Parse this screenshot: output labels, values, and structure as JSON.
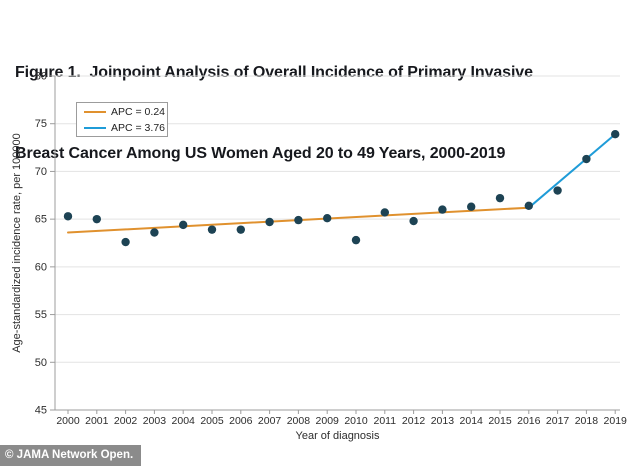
{
  "figure": {
    "title_line1": "Figure 1.  Joinpoint Analysis of Overall Incidence of Primary Invasive",
    "title_line2": "Breast Cancer Among US Women Aged 20 to 49 Years, 2000-2019"
  },
  "footer": {
    "credit": "© JAMA Network Open."
  },
  "colors": {
    "segment1": "#e0912e",
    "segment2": "#1f9cd8",
    "point": "#1d4354",
    "grid": "#e3e3e3",
    "axis": "#9c9c9c",
    "tick_text": "#2d2d2d",
    "footer_bg": "#8b8b8b"
  },
  "chart_data": {
    "type": "scatter",
    "title": "Figure 1. Joinpoint Analysis of Overall Incidence of Primary Invasive Breast Cancer Among US Women Aged 20 to 49 Years, 2000-2019",
    "xlabel": "Year of diagnosis",
    "ylabel": "Age-standardized incidence rate, per 100000",
    "x": [
      2000,
      2001,
      2002,
      2003,
      2004,
      2005,
      2006,
      2007,
      2008,
      2009,
      2010,
      2011,
      2012,
      2013,
      2014,
      2015,
      2016,
      2017,
      2018,
      2019
    ],
    "values": [
      65.3,
      65.0,
      62.6,
      63.6,
      64.4,
      63.9,
      63.9,
      64.7,
      64.9,
      65.1,
      62.8,
      65.7,
      64.8,
      66.0,
      66.3,
      67.2,
      66.4,
      68.0,
      71.3,
      73.9
    ],
    "ylim": [
      45,
      80
    ],
    "ytick_step": 5,
    "grid": "horizontal",
    "legend_position": "top-left",
    "joinpoint_year": 2016,
    "legend": [
      {
        "label": "APC = 0.24",
        "color": "#e0912e"
      },
      {
        "label": "APC = 3.76",
        "color": "#1f9cd8"
      }
    ],
    "trend_segments": [
      {
        "name": "APC = 0.24",
        "x": [
          2000,
          2016
        ],
        "y": [
          63.6,
          66.2
        ],
        "color": "#e0912e"
      },
      {
        "name": "APC = 3.76",
        "x": [
          2016,
          2019
        ],
        "y": [
          66.2,
          73.9
        ],
        "color": "#1f9cd8"
      }
    ]
  }
}
